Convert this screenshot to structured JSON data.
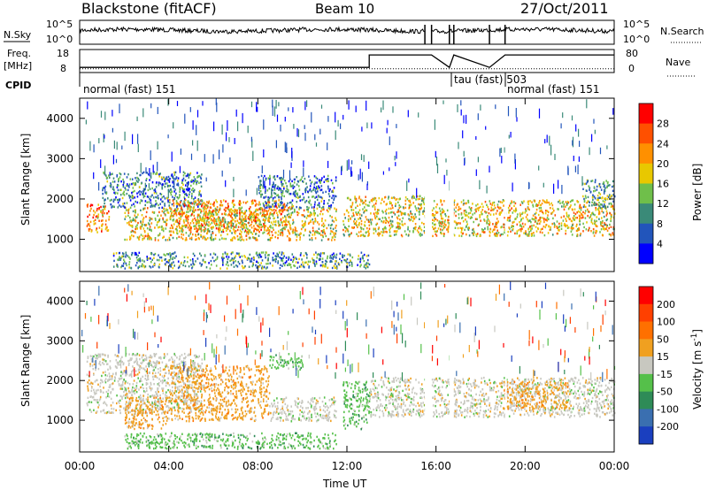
{
  "header": {
    "radar": "Blackstone (fitACF)",
    "beam": "Beam 10",
    "date": "27/Oct/2011"
  },
  "side_labels": {
    "nsky": "N.Sky",
    "nsearch": "N.Search",
    "freq_line1": "Freq.",
    "freq_line2": "[MHz]",
    "nave": "Nave",
    "cpid": "CPID"
  },
  "noise_ticks": {
    "left": [
      "10^5",
      "10^0"
    ],
    "right": [
      "10^5",
      "10^0"
    ]
  },
  "freq_ticks": {
    "left": [
      "18",
      "8"
    ],
    "right": [
      "80",
      "0"
    ]
  },
  "cpid_labels": [
    "normal (fast) 151",
    "tau (fast) 503",
    "normal (fast) 151"
  ],
  "chart_data": [
    {
      "type": "line",
      "title": "N.Sky / N.Search",
      "yscale": "log",
      "ylim": [
        1,
        100000
      ],
      "segments_hours": [
        {
          "start": 0.0,
          "end": 15.5
        },
        {
          "start": 15.8,
          "end": 24.0
        }
      ],
      "breaks_hours": [
        15.5,
        15.8,
        16.6,
        16.8,
        18.4,
        19.1
      ]
    },
    {
      "type": "line",
      "title": "Freq. / Nave",
      "series": [
        {
          "name": "Freq. [MHz]",
          "x_hours": [
            0,
            13.0,
            13.0,
            15.5,
            15.8,
            16.6,
            16.8,
            18.4,
            19.1,
            24
          ],
          "values": [
            10.5,
            10.5,
            16.5,
            16.5,
            16.5,
            10.5,
            16.5,
            10.5,
            16.5,
            16.5
          ]
        },
        {
          "name": "Nave",
          "x_hours": [
            0,
            24
          ],
          "values": [
            13,
            13
          ]
        }
      ]
    },
    {
      "type": "heatmap",
      "ylabel": "Slant Range [km]",
      "xlabel": "Time UT",
      "xlim": [
        0,
        24
      ],
      "ylim": [
        200,
        4500
      ],
      "x_ticks": [
        "00:00",
        "04:00",
        "08:00",
        "12:00",
        "16:00",
        "20:00",
        "00:00"
      ],
      "y_ticks": [
        1000,
        2000,
        3000,
        4000
      ],
      "colorbar": {
        "label": "Power [dB]",
        "ticks": [
          4,
          8,
          12,
          16,
          20,
          24,
          28
        ],
        "colors": [
          "#0000ff",
          "#2255bb",
          "#3a8a78",
          "#6fbf4a",
          "#e8c800",
          "#ff9000",
          "#ff5000",
          "#ff0000"
        ]
      },
      "regions": [
        {
          "t0": 0.3,
          "t1": 1.3,
          "r0": 1200,
          "r1": 1900,
          "intensity": 0.75
        },
        {
          "t0": 1.0,
          "t1": 5.5,
          "r0": 1800,
          "r1": 2700,
          "intensity": 0.25
        },
        {
          "t0": 2.0,
          "t1": 11.5,
          "r0": 1000,
          "r1": 1800,
          "intensity": 0.55
        },
        {
          "t0": 4.0,
          "t1": 9.5,
          "r0": 1200,
          "r1": 2000,
          "intensity": 0.7
        },
        {
          "t0": 8.0,
          "t1": 11.5,
          "r0": 1800,
          "r1": 2600,
          "intensity": 0.25
        },
        {
          "t0": 1.5,
          "t1": 13.0,
          "r0": 300,
          "r1": 700,
          "intensity": 0.3
        },
        {
          "t0": 11.8,
          "t1": 15.5,
          "r0": 1100,
          "r1": 2100,
          "intensity": 0.55
        },
        {
          "t0": 15.8,
          "t1": 24.0,
          "r0": 1100,
          "r1": 2000,
          "intensity": 0.6
        },
        {
          "t0": 22.5,
          "t1": 24.0,
          "r0": 1800,
          "r1": 2500,
          "intensity": 0.35
        }
      ]
    },
    {
      "type": "heatmap",
      "ylabel": "Slant Range [km]",
      "xlabel": "Time UT",
      "xlim": [
        0,
        24
      ],
      "ylim": [
        200,
        4500
      ],
      "x_ticks": [
        "00:00",
        "04:00",
        "08:00",
        "12:00",
        "16:00",
        "20:00",
        "00:00"
      ],
      "y_ticks": [
        1000,
        2000,
        3000,
        4000
      ],
      "colorbar": {
        "label": "Velocity [m s^-1]",
        "ticks": [
          200,
          100,
          50,
          15,
          -15,
          -50,
          -100,
          -200
        ],
        "colors": [
          "#1a3fbf",
          "#3a6fb0",
          "#2e8b57",
          "#55c04a",
          "#c8c8c0",
          "#f0a020",
          "#ff7000",
          "#ff4000",
          "#ff0000"
        ]
      },
      "regions": [
        {
          "t0": 0.3,
          "t1": 5.5,
          "r0": 1200,
          "r1": 2700,
          "vclass": 4
        },
        {
          "t0": 2.0,
          "t1": 4.0,
          "r0": 800,
          "r1": 1600,
          "vclass": 5
        },
        {
          "t0": 4.0,
          "t1": 8.5,
          "r0": 1000,
          "r1": 2400,
          "vclass": 5
        },
        {
          "t0": 8.5,
          "t1": 11.5,
          "r0": 1000,
          "r1": 1600,
          "vclass": 4
        },
        {
          "t0": 8.5,
          "t1": 10.0,
          "r0": 2300,
          "r1": 2700,
          "vclass": 3
        },
        {
          "t0": 2.0,
          "t1": 11.5,
          "r0": 300,
          "r1": 700,
          "vclass": 3
        },
        {
          "t0": 11.8,
          "t1": 13.0,
          "r0": 800,
          "r1": 2000,
          "vclass": 3
        },
        {
          "t0": 13.0,
          "t1": 15.5,
          "r0": 1100,
          "r1": 2100,
          "vclass": 4
        },
        {
          "t0": 15.8,
          "t1": 24.0,
          "r0": 1100,
          "r1": 2100,
          "vclass": 4
        },
        {
          "t0": 19.0,
          "t1": 22.0,
          "r0": 1300,
          "r1": 2000,
          "vclass": 5
        }
      ]
    }
  ]
}
